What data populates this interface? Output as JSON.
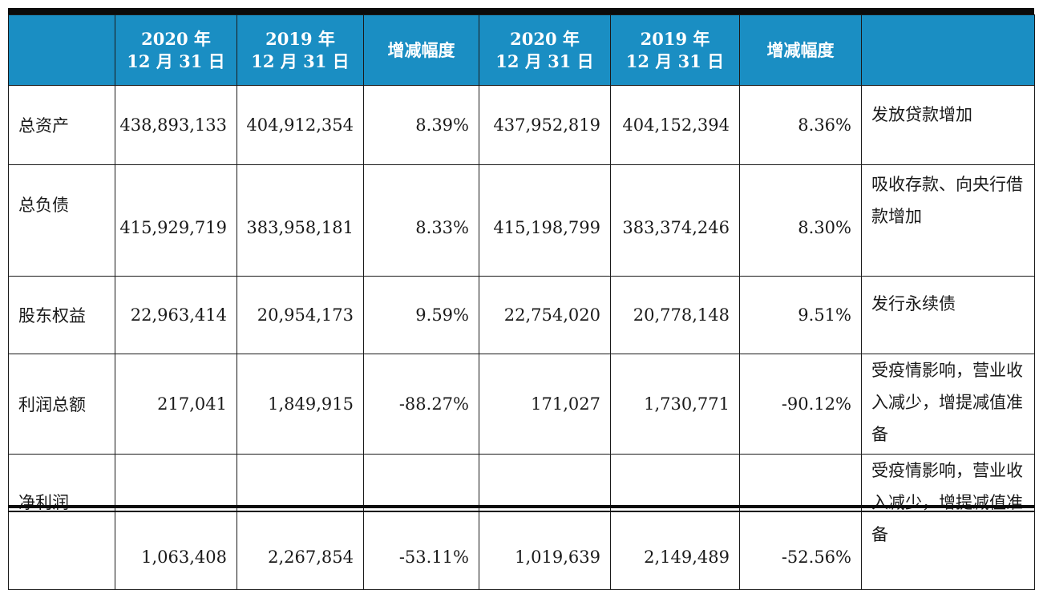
{
  "table": {
    "headers": [
      "",
      [
        "2020 年",
        "12 月 31 日"
      ],
      [
        "2019 年",
        "12 月 31 日"
      ],
      [
        "增减幅度"
      ],
      [
        "2020 年",
        "12 月 31 日"
      ],
      [
        "2019 年",
        "12 月 31 日"
      ],
      [
        "增减幅度"
      ],
      ""
    ],
    "rows": [
      {
        "label": "总资产",
        "values": [
          "438,893,133",
          "404,912,354",
          "8.39%",
          "437,952,819",
          "404,152,394",
          "8.36%"
        ],
        "note": "发放贷款增加"
      },
      {
        "label": "总负债",
        "values": [
          "415,929,719",
          "383,958,181",
          "8.33%",
          "415,198,799",
          "383,374,246",
          "8.30%"
        ],
        "note": "吸收存款、向央行借款增加"
      },
      {
        "label": "股东权益",
        "values": [
          "22,963,414",
          "20,954,173",
          "9.59%",
          "22,754,020",
          "20,778,148",
          "9.51%"
        ],
        "note": "发行永续债"
      },
      {
        "label": "利润总额",
        "values": [
          "217,041",
          "1,849,915",
          "-88.27%",
          "171,027",
          "1,730,771",
          "-90.12%"
        ],
        "note": "受疫情影响，营业收入减少，增提减值准备"
      },
      {
        "label": "净利润",
        "values": [
          "1,063,408",
          "2,267,854",
          "-53.11%",
          "1,019,639",
          "2,149,489",
          "-52.56%"
        ],
        "note": "受疫情影响，营业收入减少，增提减值准备"
      }
    ]
  },
  "colors": {
    "header_bg": "#1a8ec3",
    "header_text": "#ffffff",
    "rule": "#0b0b0b"
  }
}
